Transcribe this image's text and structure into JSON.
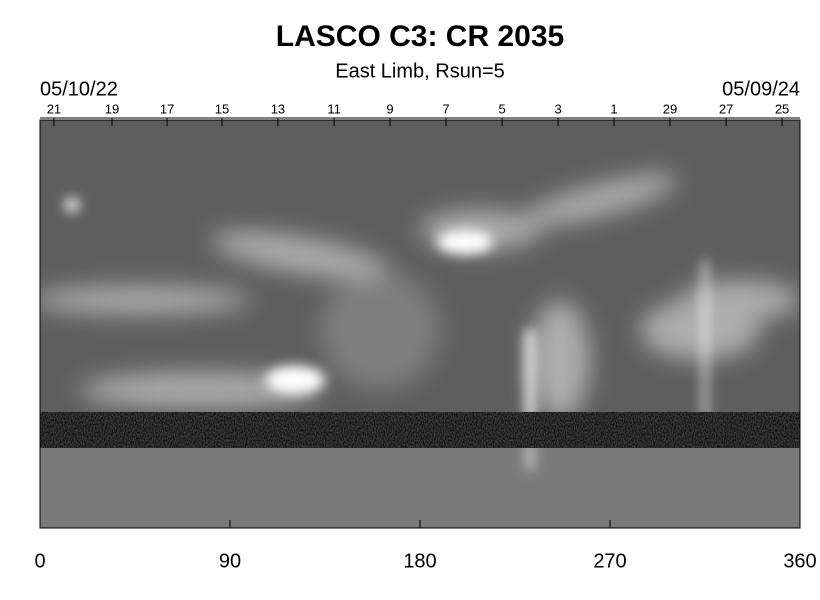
{
  "chart_data": {
    "type": "image",
    "title": "LASCO C3: CR 2035",
    "subtitle": "East Limb, Rsun=5",
    "start_date": "05/10/22",
    "end_date": "05/09/24",
    "xlim": [
      0,
      360
    ],
    "xticks": [
      0,
      90,
      180,
      270,
      360
    ],
    "top_axis": {
      "labels": [
        "21",
        "19",
        "17",
        "15",
        "13",
        "11",
        "9",
        "7",
        "5",
        "3",
        "1",
        "29",
        "27",
        "25"
      ],
      "positions": [
        6.6,
        34.1,
        60.2,
        86.2,
        112.7,
        139.3,
        165.8,
        192.3,
        218.9,
        245.4,
        271.9,
        298.4,
        325,
        351.5
      ]
    }
  }
}
